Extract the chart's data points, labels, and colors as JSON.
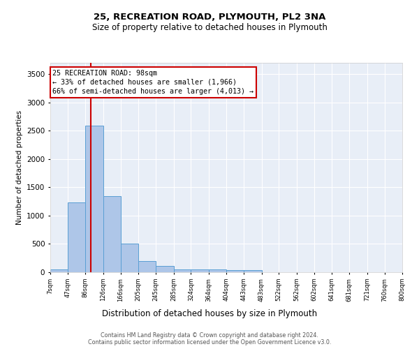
{
  "title": "25, RECREATION ROAD, PLYMOUTH, PL2 3NA",
  "subtitle": "Size of property relative to detached houses in Plymouth",
  "xlabel": "Distribution of detached houses by size in Plymouth",
  "ylabel": "Number of detached properties",
  "bar_color": "#aec6e8",
  "bar_edge_color": "#5a9fd4",
  "vline_color": "#cc0000",
  "vline_x": 98,
  "annotation_text": "25 RECREATION ROAD: 98sqm\n← 33% of detached houses are smaller (1,966)\n66% of semi-detached houses are larger (4,013) →",
  "annotation_box_color": "#cc0000",
  "bin_edges": [
    7,
    47,
    86,
    126,
    166,
    205,
    245,
    285,
    324,
    364,
    404,
    443,
    483,
    522,
    562,
    602,
    641,
    681,
    721,
    760,
    800
  ],
  "bar_heights": [
    55,
    1230,
    2590,
    1340,
    500,
    195,
    105,
    55,
    50,
    45,
    35,
    35,
    5,
    5,
    5,
    0,
    0,
    0,
    0,
    0
  ],
  "ylim": [
    0,
    3700
  ],
  "xlim": [
    7,
    800
  ],
  "tick_labels": [
    "7sqm",
    "47sqm",
    "86sqm",
    "126sqm",
    "166sqm",
    "205sqm",
    "245sqm",
    "285sqm",
    "324sqm",
    "364sqm",
    "404sqm",
    "443sqm",
    "483sqm",
    "522sqm",
    "562sqm",
    "602sqm",
    "641sqm",
    "681sqm",
    "721sqm",
    "760sqm",
    "800sqm"
  ],
  "background_color": "#e8eef7",
  "footer_line1": "Contains HM Land Registry data © Crown copyright and database right 2024.",
  "footer_line2": "Contains public sector information licensed under the Open Government Licence v3.0."
}
